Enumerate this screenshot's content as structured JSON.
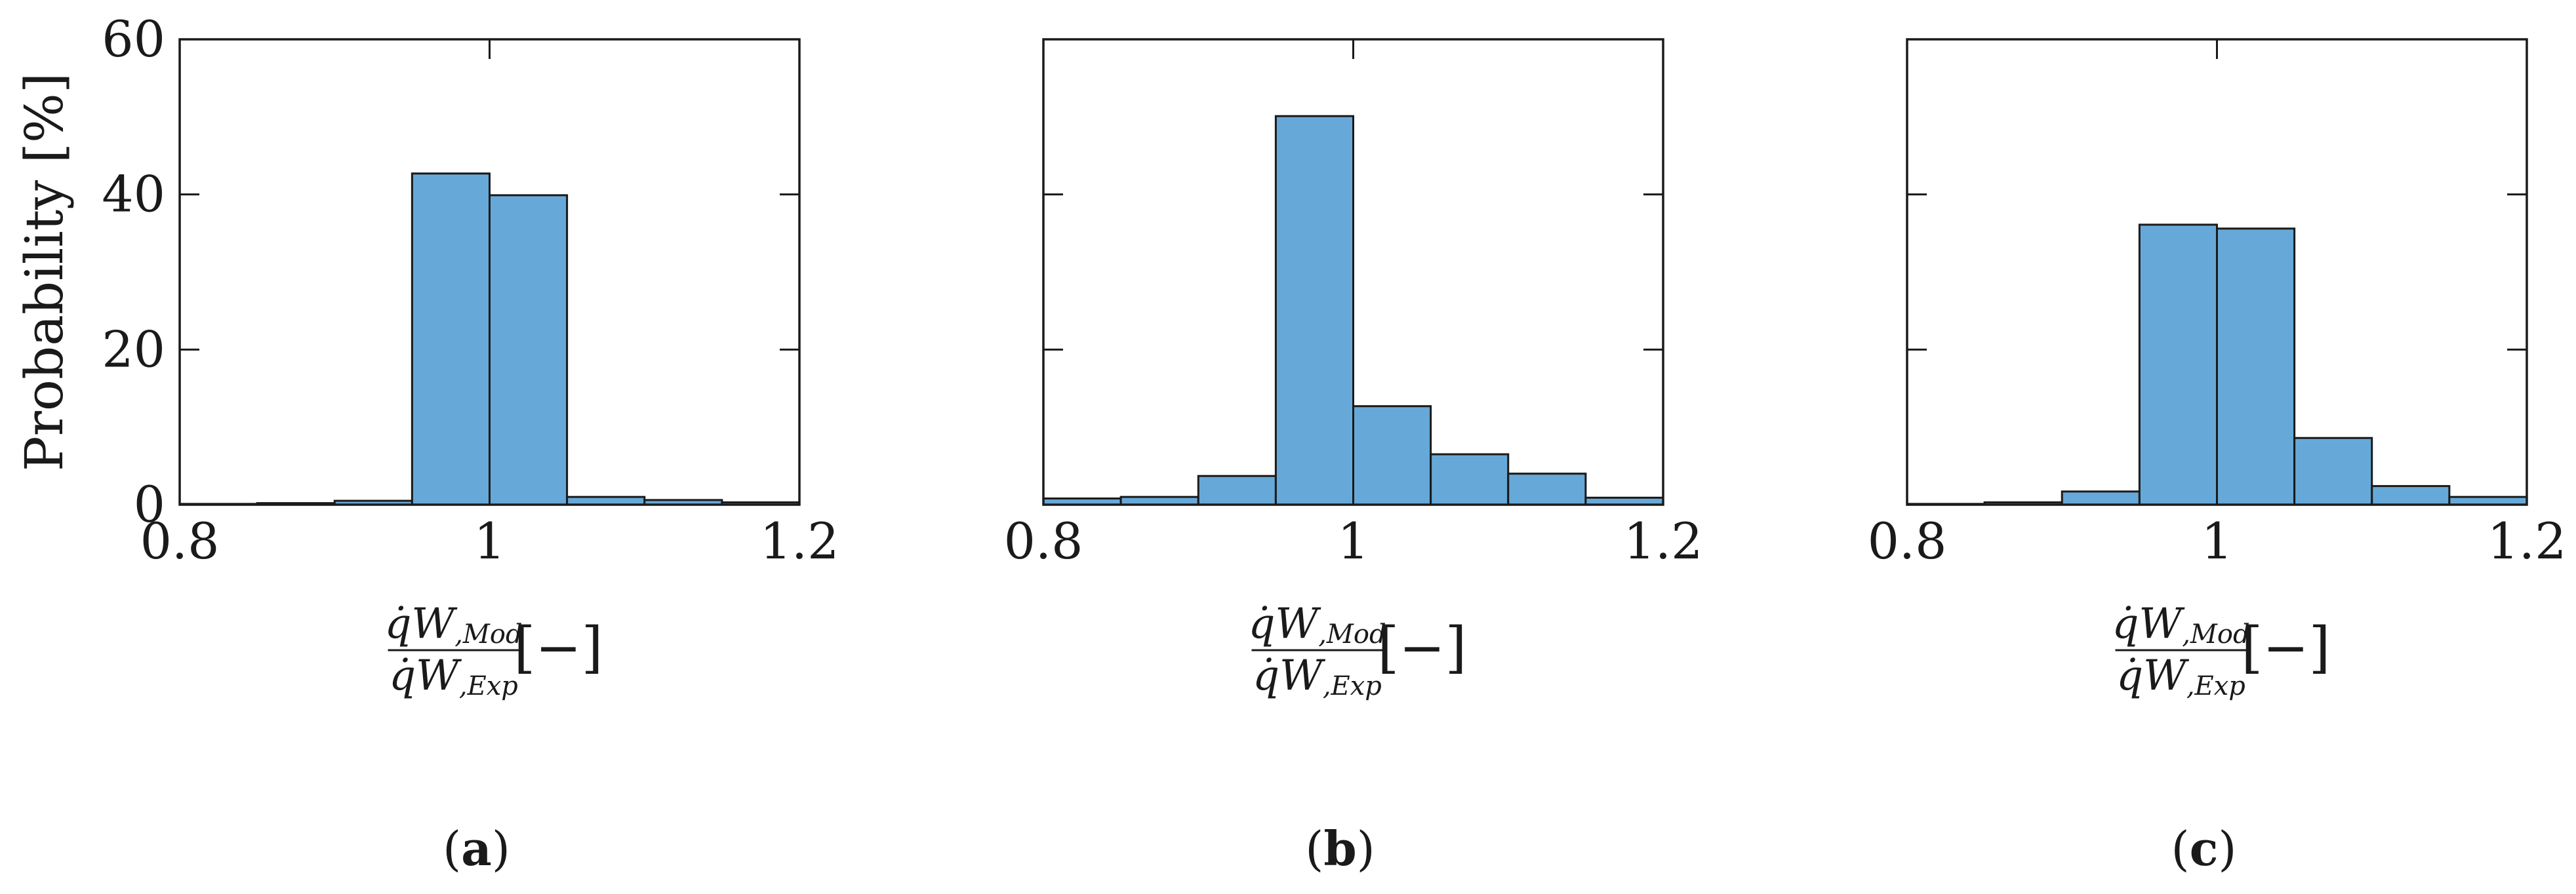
{
  "figure": {
    "ylabel": "Probability [%]",
    "xlabel": {
      "numerator": "q̇",
      "numerator_sub": "W,Mod",
      "denominator": "q̇",
      "denominator_sub": "W,Exp",
      "unit": "[−]"
    }
  },
  "colors": {
    "bar_fill": "#66a9d8",
    "bar_edge": "#1a1a1a",
    "axes": "#1a1a1a"
  },
  "chart_data": [
    {
      "type": "bar",
      "panel": "(a)",
      "caption_letter": "a",
      "bin_edges": [
        0.8,
        0.85,
        0.9,
        0.95,
        1.0,
        1.05,
        1.1,
        1.15,
        1.2
      ],
      "values": [
        0.1,
        0.2,
        0.5,
        42.7,
        39.9,
        1.0,
        0.6,
        0.3
      ],
      "xlim": [
        0.8,
        1.2
      ],
      "ylim": [
        0,
        60
      ],
      "xticks": [
        "0.8",
        "1",
        "1.2"
      ],
      "yticks": [
        "0",
        "20",
        "40",
        "60"
      ]
    },
    {
      "type": "bar",
      "panel": "(b)",
      "caption_letter": "b",
      "bin_edges": [
        0.8,
        0.85,
        0.9,
        0.95,
        1.0,
        1.05,
        1.1,
        1.15,
        1.2
      ],
      "values": [
        0.8,
        1.0,
        3.7,
        50.1,
        12.7,
        6.5,
        4.0,
        0.9
      ],
      "xlim": [
        0.8,
        1.2
      ],
      "ylim": [
        0,
        60
      ],
      "xticks": [
        "0.8",
        "1",
        "1.2"
      ],
      "yticks": []
    },
    {
      "type": "bar",
      "panel": "(c)",
      "caption_letter": "c",
      "bin_edges": [
        0.8,
        0.85,
        0.9,
        0.95,
        1.0,
        1.05,
        1.1,
        1.15,
        1.2
      ],
      "values": [
        0.1,
        0.3,
        1.7,
        36.1,
        35.6,
        8.6,
        2.4,
        1.0
      ],
      "xlim": [
        0.8,
        1.2
      ],
      "ylim": [
        0,
        60
      ],
      "xticks": [
        "0.8",
        "1",
        "1.2"
      ],
      "yticks": []
    }
  ]
}
